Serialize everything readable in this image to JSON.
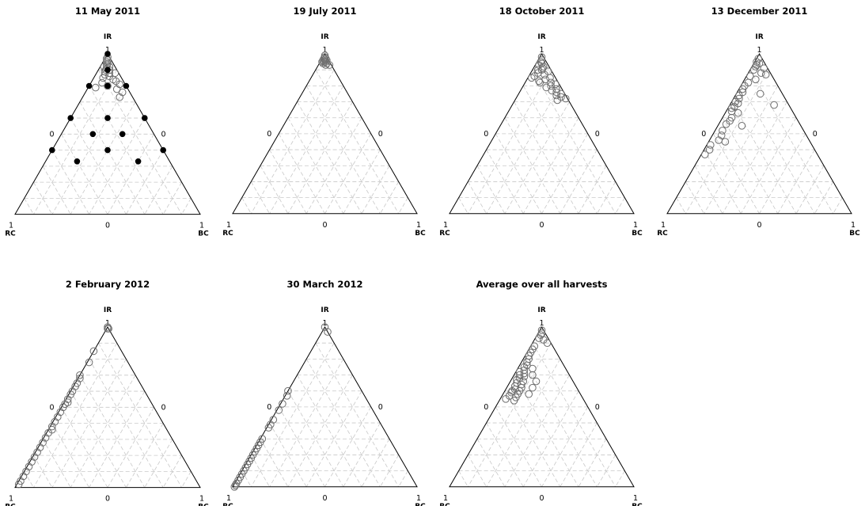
{
  "figure": {
    "chart_type": "ternary scatter",
    "corner_labels": {
      "top": "IR",
      "left": "RC",
      "right": "BC"
    },
    "tick_labels": {
      "max": "1",
      "min": "0"
    },
    "grid": true,
    "marker_style": "open grey circles"
  },
  "chart_data": [
    {
      "type": "scatter",
      "title": "11 May 2011",
      "note": "filled black points mark the experimental design; open circles are observations",
      "design_points": [
        [
          1,
          0,
          0
        ],
        [
          0.8,
          0.2,
          0
        ],
        [
          0.8,
          0,
          0.2
        ],
        [
          0.8,
          0.1,
          0.1
        ],
        [
          0.6,
          0.4,
          0
        ],
        [
          0.6,
          0.2,
          0.2
        ],
        [
          0.6,
          0,
          0.4
        ],
        [
          0.5,
          0.33,
          0.17
        ],
        [
          0.5,
          0.17,
          0.33
        ],
        [
          0.4,
          0.6,
          0
        ],
        [
          0.4,
          0.3,
          0.3
        ],
        [
          0.4,
          0,
          0.6
        ],
        [
          0.33,
          0.5,
          0.17
        ],
        [
          0.33,
          0.17,
          0.5
        ],
        [
          0.9,
          0.05,
          0.05
        ]
      ],
      "points": [
        [
          0.98,
          0.01,
          0.01
        ],
        [
          0.96,
          0.02,
          0.02
        ],
        [
          0.95,
          0.03,
          0.02
        ],
        [
          0.94,
          0.03,
          0.03
        ],
        [
          0.93,
          0.04,
          0.03
        ],
        [
          0.92,
          0.03,
          0.05
        ],
        [
          0.91,
          0.05,
          0.04
        ],
        [
          0.9,
          0.06,
          0.04
        ],
        [
          0.9,
          0.04,
          0.06
        ],
        [
          0.89,
          0.07,
          0.04
        ],
        [
          0.88,
          0.05,
          0.07
        ],
        [
          0.87,
          0.08,
          0.05
        ],
        [
          0.86,
          0.06,
          0.08
        ],
        [
          0.85,
          0.1,
          0.05
        ],
        [
          0.84,
          0.05,
          0.11
        ],
        [
          0.83,
          0.04,
          0.13
        ],
        [
          0.82,
          0.12,
          0.06
        ],
        [
          0.81,
          0.03,
          0.16
        ],
        [
          0.8,
          0.1,
          0.1
        ],
        [
          0.79,
          0.17,
          0.04
        ],
        [
          0.78,
          0.06,
          0.16
        ],
        [
          0.76,
          0.04,
          0.2
        ],
        [
          0.73,
          0.07,
          0.2
        ],
        [
          0.97,
          0.02,
          0.01
        ],
        [
          0.92,
          0.06,
          0.02
        ],
        [
          0.88,
          0.02,
          0.1
        ]
      ]
    },
    {
      "type": "scatter",
      "title": "19 July 2011",
      "points": [
        [
          0.99,
          0.005,
          0.005
        ],
        [
          0.98,
          0.01,
          0.01
        ],
        [
          0.97,
          0.02,
          0.01
        ],
        [
          0.97,
          0.01,
          0.02
        ],
        [
          0.96,
          0.02,
          0.02
        ],
        [
          0.96,
          0.03,
          0.01
        ],
        [
          0.96,
          0.01,
          0.03
        ],
        [
          0.95,
          0.03,
          0.02
        ],
        [
          0.95,
          0.02,
          0.03
        ],
        [
          0.94,
          0.04,
          0.02
        ],
        [
          0.94,
          0.02,
          0.04
        ],
        [
          0.93,
          0.03,
          0.04
        ],
        [
          0.95,
          0.04,
          0.01
        ],
        [
          0.93,
          0.01,
          0.06
        ]
      ]
    },
    {
      "type": "scatter",
      "title": "18 October 2011",
      "points": [
        [
          0.98,
          0.01,
          0.01
        ],
        [
          0.96,
          0.02,
          0.02
        ],
        [
          0.95,
          0.03,
          0.02
        ],
        [
          0.94,
          0.03,
          0.03
        ],
        [
          0.93,
          0.05,
          0.02
        ],
        [
          0.92,
          0.03,
          0.05
        ],
        [
          0.91,
          0.04,
          0.05
        ],
        [
          0.9,
          0.07,
          0.03
        ],
        [
          0.9,
          0.05,
          0.05
        ],
        [
          0.89,
          0.02,
          0.09
        ],
        [
          0.88,
          0.08,
          0.04
        ],
        [
          0.87,
          0.05,
          0.08
        ],
        [
          0.86,
          0.11,
          0.03
        ],
        [
          0.85,
          0.03,
          0.12
        ],
        [
          0.84,
          0.06,
          0.1
        ],
        [
          0.83,
          0.1,
          0.07
        ],
        [
          0.82,
          0.04,
          0.14
        ],
        [
          0.81,
          0.02,
          0.17
        ],
        [
          0.8,
          0.05,
          0.15
        ],
        [
          0.79,
          0.08,
          0.13
        ],
        [
          0.78,
          0.03,
          0.19
        ],
        [
          0.77,
          0.06,
          0.17
        ],
        [
          0.76,
          0.04,
          0.2
        ],
        [
          0.75,
          0.02,
          0.23
        ],
        [
          0.74,
          0.05,
          0.21
        ],
        [
          0.73,
          0.03,
          0.24
        ],
        [
          0.72,
          0.01,
          0.27
        ],
        [
          0.71,
          0.06,
          0.23
        ],
        [
          0.85,
          0.13,
          0.02
        ],
        [
          0.82,
          0.1,
          0.08
        ]
      ]
    },
    {
      "type": "scatter",
      "title": "13 December 2011",
      "points": [
        [
          0.97,
          0.02,
          0.01
        ],
        [
          0.95,
          0.04,
          0.01
        ],
        [
          0.94,
          0.03,
          0.03
        ],
        [
          0.92,
          0.06,
          0.02
        ],
        [
          0.9,
          0.08,
          0.02
        ],
        [
          0.88,
          0.05,
          0.07
        ],
        [
          0.86,
          0.12,
          0.02
        ],
        [
          0.84,
          0.1,
          0.06
        ],
        [
          0.82,
          0.15,
          0.03
        ],
        [
          0.8,
          0.18,
          0.02
        ],
        [
          0.78,
          0.2,
          0.02
        ],
        [
          0.76,
          0.21,
          0.03
        ],
        [
          0.74,
          0.24,
          0.02
        ],
        [
          0.72,
          0.25,
          0.03
        ],
        [
          0.7,
          0.28,
          0.02
        ],
        [
          0.69,
          0.27,
          0.04
        ],
        [
          0.67,
          0.3,
          0.03
        ],
        [
          0.66,
          0.32,
          0.02
        ],
        [
          0.64,
          0.33,
          0.03
        ],
        [
          0.63,
          0.3,
          0.07
        ],
        [
          0.6,
          0.35,
          0.05
        ],
        [
          0.58,
          0.37,
          0.05
        ],
        [
          0.56,
          0.4,
          0.04
        ],
        [
          0.52,
          0.44,
          0.04
        ],
        [
          0.49,
          0.46,
          0.05
        ],
        [
          0.46,
          0.49,
          0.05
        ],
        [
          0.43,
          0.55,
          0.02
        ],
        [
          0.4,
          0.57,
          0.03
        ],
        [
          0.37,
          0.61,
          0.02
        ],
        [
          0.91,
          0.02,
          0.07
        ],
        [
          0.87,
          0.03,
          0.1
        ],
        [
          0.75,
          0.12,
          0.13
        ],
        [
          0.68,
          0.08,
          0.24
        ],
        [
          0.55,
          0.32,
          0.13
        ],
        [
          0.45,
          0.46,
          0.09
        ],
        [
          0.93,
          0.05,
          0.02
        ]
      ]
    },
    {
      "type": "scatter",
      "title": "2 February 2012",
      "points": [
        [
          1,
          0,
          0
        ],
        [
          0.99,
          0.005,
          0.005
        ],
        [
          0.99,
          0,
          0.01
        ],
        [
          0.85,
          0.15,
          0
        ],
        [
          0.78,
          0.21,
          0.01
        ],
        [
          0.7,
          0.3,
          0
        ],
        [
          0.68,
          0.31,
          0.01
        ],
        [
          0.65,
          0.34,
          0.01
        ],
        [
          0.63,
          0.36,
          0.01
        ],
        [
          0.6,
          0.39,
          0.01
        ],
        [
          0.58,
          0.41,
          0.01
        ],
        [
          0.55,
          0.44,
          0.01
        ],
        [
          0.52,
          0.47,
          0.01
        ],
        [
          0.5,
          0.49,
          0.01
        ],
        [
          0.47,
          0.52,
          0.01
        ],
        [
          0.44,
          0.55,
          0.01
        ],
        [
          0.41,
          0.58,
          0.01
        ],
        [
          0.38,
          0.61,
          0.01
        ],
        [
          0.34,
          0.65,
          0.01
        ],
        [
          0.31,
          0.68,
          0.01
        ],
        [
          0.28,
          0.71,
          0.01
        ],
        [
          0.25,
          0.74,
          0.01
        ],
        [
          0.22,
          0.77,
          0.01
        ],
        [
          0.19,
          0.8,
          0.01
        ],
        [
          0.16,
          0.83,
          0.01
        ],
        [
          0.13,
          0.86,
          0.01
        ],
        [
          0.1,
          0.89,
          0.01
        ],
        [
          0.07,
          0.92,
          0.01
        ],
        [
          0.04,
          0.95,
          0.01
        ],
        [
          0.02,
          0.97,
          0.01
        ],
        [
          0.53,
          0.45,
          0.02
        ],
        [
          0.36,
          0.62,
          0.02
        ]
      ]
    },
    {
      "type": "scatter",
      "title": "30 March 2012",
      "points": [
        [
          1,
          0,
          0
        ],
        [
          0.97,
          0,
          0.03
        ],
        [
          0.6,
          0.4,
          0
        ],
        [
          0.57,
          0.42,
          0.01
        ],
        [
          0.52,
          0.47,
          0.01
        ],
        [
          0.48,
          0.51,
          0.01
        ],
        [
          0.42,
          0.57,
          0.01
        ],
        [
          0.39,
          0.6,
          0.01
        ],
        [
          0.37,
          0.62,
          0.01
        ],
        [
          0.3,
          0.69,
          0.01
        ],
        [
          0.28,
          0.71,
          0.01
        ],
        [
          0.26,
          0.73,
          0.01
        ],
        [
          0.24,
          0.75,
          0.01
        ],
        [
          0.22,
          0.77,
          0.01
        ],
        [
          0.2,
          0.79,
          0.01
        ],
        [
          0.18,
          0.81,
          0.01
        ],
        [
          0.16,
          0.83,
          0.01
        ],
        [
          0.14,
          0.85,
          0.01
        ],
        [
          0.12,
          0.87,
          0.01
        ],
        [
          0.1,
          0.89,
          0.01
        ],
        [
          0.08,
          0.91,
          0.01
        ],
        [
          0.06,
          0.93,
          0.01
        ],
        [
          0.04,
          0.95,
          0.01
        ],
        [
          0.02,
          0.97,
          0.01
        ],
        [
          0.01,
          0.98,
          0.01
        ],
        [
          0,
          0.99,
          0.01
        ]
      ]
    },
    {
      "type": "scatter",
      "title": "Average over all harvests",
      "points": [
        [
          0.98,
          0.01,
          0.01
        ],
        [
          0.96,
          0.02,
          0.02
        ],
        [
          0.95,
          0.03,
          0.02
        ],
        [
          0.93,
          0.05,
          0.02
        ],
        [
          0.92,
          0.03,
          0.05
        ],
        [
          0.9,
          0.02,
          0.08
        ],
        [
          0.88,
          0.1,
          0.02
        ],
        [
          0.86,
          0.12,
          0.02
        ],
        [
          0.84,
          0.14,
          0.02
        ],
        [
          0.82,
          0.16,
          0.02
        ],
        [
          0.8,
          0.17,
          0.03
        ],
        [
          0.78,
          0.19,
          0.03
        ],
        [
          0.76,
          0.2,
          0.04
        ],
        [
          0.75,
          0.22,
          0.03
        ],
        [
          0.73,
          0.23,
          0.04
        ],
        [
          0.72,
          0.26,
          0.02
        ],
        [
          0.71,
          0.24,
          0.05
        ],
        [
          0.7,
          0.27,
          0.03
        ],
        [
          0.69,
          0.25,
          0.06
        ],
        [
          0.68,
          0.28,
          0.04
        ],
        [
          0.67,
          0.3,
          0.03
        ],
        [
          0.66,
          0.27,
          0.07
        ],
        [
          0.65,
          0.31,
          0.04
        ],
        [
          0.64,
          0.29,
          0.07
        ],
        [
          0.63,
          0.33,
          0.04
        ],
        [
          0.62,
          0.3,
          0.08
        ],
        [
          0.61,
          0.34,
          0.05
        ],
        [
          0.6,
          0.36,
          0.04
        ],
        [
          0.6,
          0.32,
          0.08
        ],
        [
          0.59,
          0.37,
          0.04
        ],
        [
          0.58,
          0.34,
          0.08
        ],
        [
          0.57,
          0.39,
          0.04
        ],
        [
          0.56,
          0.36,
          0.08
        ],
        [
          0.55,
          0.42,
          0.03
        ],
        [
          0.54,
          0.38,
          0.08
        ],
        [
          0.74,
          0.18,
          0.08
        ],
        [
          0.7,
          0.2,
          0.1
        ],
        [
          0.66,
          0.2,
          0.14
        ],
        [
          0.62,
          0.24,
          0.14
        ],
        [
          0.58,
          0.28,
          0.14
        ]
      ]
    }
  ]
}
